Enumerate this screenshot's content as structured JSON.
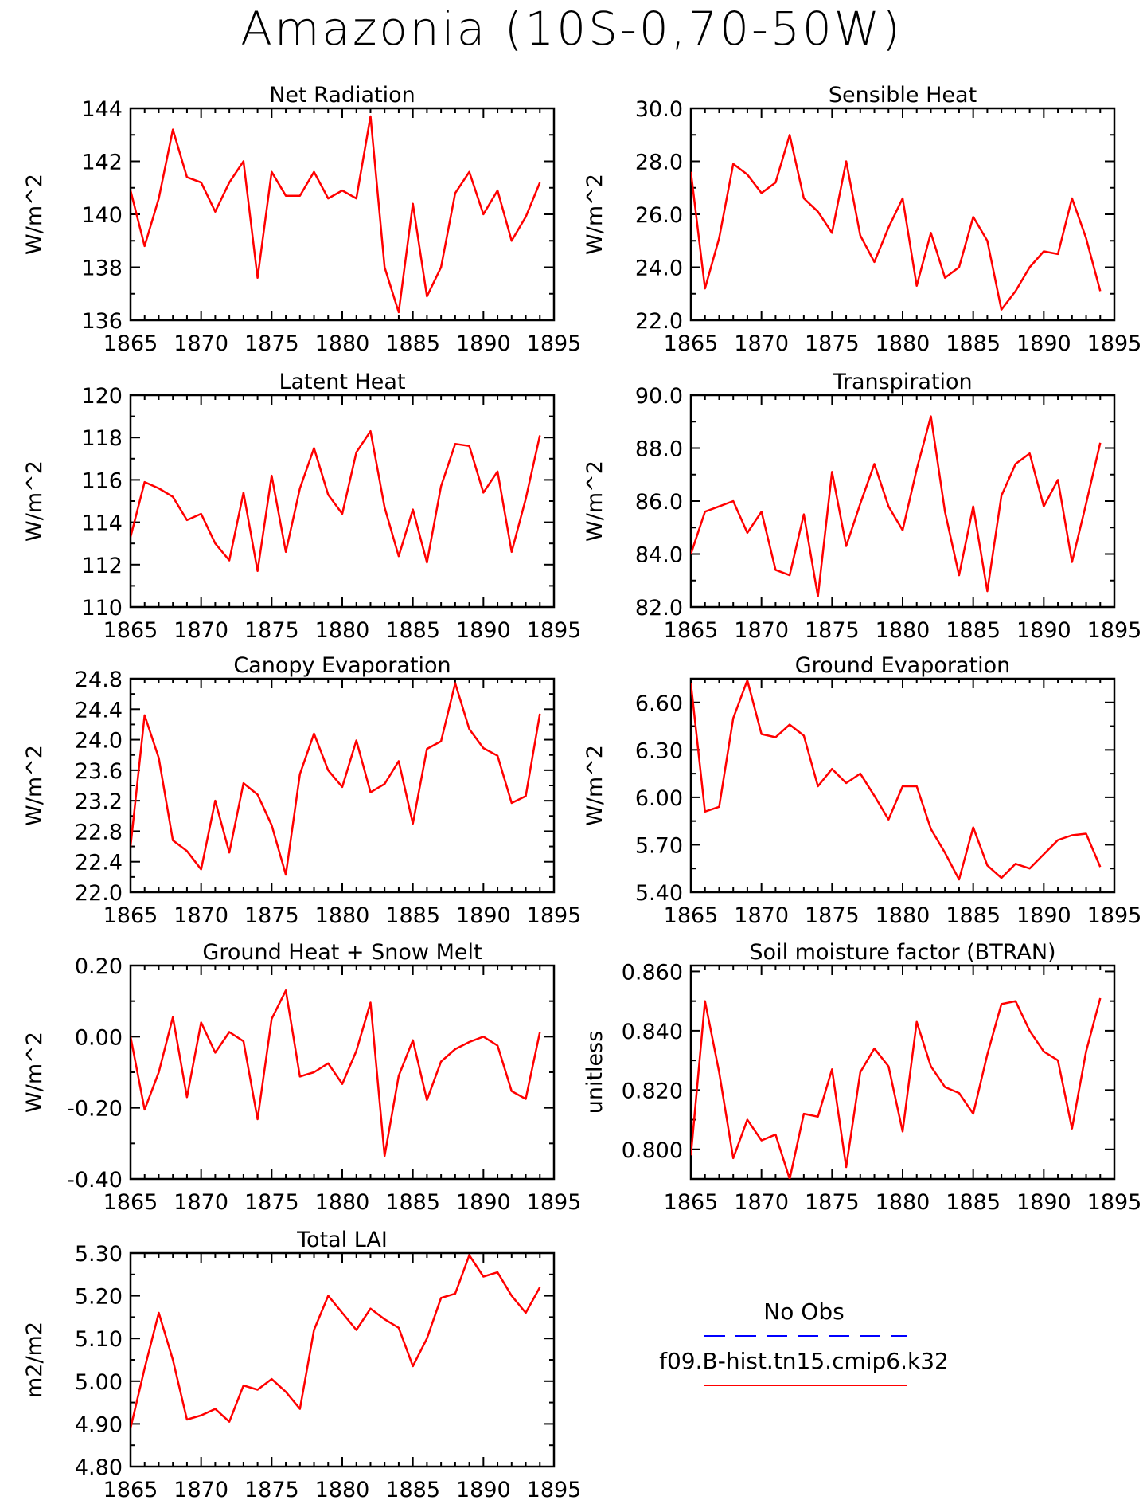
{
  "title": "Amazonia (10S-0,70-50W)",
  "legend": {
    "obs_label": "No Obs",
    "obs_color": "#0000ff",
    "model_label": "f09.B-hist.tn15.cmip6.k32",
    "model_color": "#ff0000"
  },
  "chart_data": [
    {
      "type": "line",
      "title": "Net Radiation",
      "ylabel": "W/m^2",
      "xlim": [
        1865,
        1895
      ],
      "ylim": [
        136,
        144
      ],
      "xticks": [
        "1865",
        "1870",
        "1875",
        "1880",
        "1885",
        "1890",
        "1895"
      ],
      "yticks": [
        "136",
        "138",
        "140",
        "142",
        "144"
      ],
      "series": [
        {
          "name": "f09.B-hist.tn15.cmip6.k32",
          "x": [
            1865,
            1866,
            1867,
            1868,
            1869,
            1870,
            1871,
            1872,
            1873,
            1874,
            1875,
            1876,
            1877,
            1878,
            1879,
            1880,
            1881,
            1882,
            1883,
            1884,
            1885,
            1886,
            1887,
            1888,
            1889,
            1890,
            1891,
            1892,
            1893,
            1894
          ],
          "values": [
            140.9,
            138.8,
            140.6,
            143.2,
            141.4,
            141.2,
            140.1,
            141.2,
            142.0,
            137.6,
            141.6,
            140.7,
            140.7,
            141.6,
            140.6,
            140.9,
            140.6,
            143.7,
            138.0,
            136.3,
            140.4,
            136.9,
            138.0,
            140.8,
            141.6,
            140.0,
            140.9,
            139.0,
            139.9,
            141.2
          ]
        }
      ]
    },
    {
      "type": "line",
      "title": "Sensible Heat",
      "ylabel": "W/m^2",
      "xlim": [
        1865,
        1895
      ],
      "ylim": [
        22,
        30
      ],
      "xticks": [
        "1865",
        "1870",
        "1875",
        "1880",
        "1885",
        "1890",
        "1895"
      ],
      "yticks": [
        "22.0",
        "24.0",
        "26.0",
        "28.0",
        "30.0"
      ],
      "series": [
        {
          "name": "f09.B-hist.tn15.cmip6.k32",
          "x": [
            1865,
            1866,
            1867,
            1868,
            1869,
            1870,
            1871,
            1872,
            1873,
            1874,
            1875,
            1876,
            1877,
            1878,
            1879,
            1880,
            1881,
            1882,
            1883,
            1884,
            1885,
            1886,
            1887,
            1888,
            1889,
            1890,
            1891,
            1892,
            1893,
            1894
          ],
          "values": [
            27.6,
            23.2,
            25.1,
            27.9,
            27.5,
            26.8,
            27.2,
            29.0,
            26.6,
            26.1,
            25.3,
            28.0,
            25.2,
            24.2,
            25.5,
            26.6,
            23.3,
            25.3,
            23.6,
            24.0,
            25.9,
            25.0,
            22.4,
            23.1,
            24.0,
            24.6,
            24.5,
            26.6,
            25.1,
            23.1
          ]
        }
      ]
    },
    {
      "type": "line",
      "title": "Latent Heat",
      "ylabel": "W/m^2",
      "xlim": [
        1865,
        1895
      ],
      "ylim": [
        110,
        120
      ],
      "xticks": [
        "1865",
        "1870",
        "1875",
        "1880",
        "1885",
        "1890",
        "1895"
      ],
      "yticks": [
        "110",
        "112",
        "114",
        "116",
        "118",
        "120"
      ],
      "series": [
        {
          "name": "f09.B-hist.tn15.cmip6.k32",
          "x": [
            1865,
            1866,
            1867,
            1868,
            1869,
            1870,
            1871,
            1872,
            1873,
            1874,
            1875,
            1876,
            1877,
            1878,
            1879,
            1880,
            1881,
            1882,
            1883,
            1884,
            1885,
            1886,
            1887,
            1888,
            1889,
            1890,
            1891,
            1892,
            1893,
            1894
          ],
          "values": [
            113.3,
            115.9,
            115.6,
            115.2,
            114.1,
            114.4,
            113.0,
            112.2,
            115.4,
            111.7,
            116.2,
            112.6,
            115.6,
            117.5,
            115.3,
            114.4,
            117.3,
            118.3,
            114.7,
            112.4,
            114.6,
            112.1,
            115.7,
            117.7,
            117.6,
            115.4,
            116.4,
            112.6,
            115.1,
            118.1
          ]
        }
      ]
    },
    {
      "type": "line",
      "title": "Transpiration",
      "ylabel": "W/m^2",
      "xlim": [
        1865,
        1895
      ],
      "ylim": [
        82,
        90
      ],
      "xticks": [
        "1865",
        "1870",
        "1875",
        "1880",
        "1885",
        "1890",
        "1895"
      ],
      "yticks": [
        "82.0",
        "84.0",
        "86.0",
        "88.0",
        "90.0"
      ],
      "series": [
        {
          "name": "f09.B-hist.tn15.cmip6.k32",
          "x": [
            1865,
            1866,
            1867,
            1868,
            1869,
            1870,
            1871,
            1872,
            1873,
            1874,
            1875,
            1876,
            1877,
            1878,
            1879,
            1880,
            1881,
            1882,
            1883,
            1884,
            1885,
            1886,
            1887,
            1888,
            1889,
            1890,
            1891,
            1892,
            1893,
            1894
          ],
          "values": [
            84.0,
            85.6,
            85.8,
            86.0,
            84.8,
            85.6,
            83.4,
            83.2,
            85.5,
            82.4,
            87.1,
            84.3,
            85.9,
            87.4,
            85.8,
            84.9,
            87.2,
            89.2,
            85.6,
            83.2,
            85.8,
            82.6,
            86.2,
            87.4,
            87.8,
            85.8,
            86.8,
            83.7,
            85.9,
            88.2
          ]
        }
      ]
    },
    {
      "type": "line",
      "title": "Canopy Evaporation",
      "ylabel": "W/m^2",
      "xlim": [
        1865,
        1895
      ],
      "ylim": [
        22.0,
        24.8
      ],
      "xticks": [
        "1865",
        "1870",
        "1875",
        "1880",
        "1885",
        "1890",
        "1895"
      ],
      "yticks": [
        "22.0",
        "22.4",
        "22.8",
        "23.2",
        "23.6",
        "24.0",
        "24.4",
        "24.8"
      ],
      "series": [
        {
          "name": "f09.B-hist.tn15.cmip6.k32",
          "x": [
            1865,
            1866,
            1867,
            1868,
            1869,
            1870,
            1871,
            1872,
            1873,
            1874,
            1875,
            1876,
            1877,
            1878,
            1879,
            1880,
            1881,
            1882,
            1883,
            1884,
            1885,
            1886,
            1887,
            1888,
            1889,
            1890,
            1891,
            1892,
            1893,
            1894
          ],
          "values": [
            22.6,
            24.32,
            23.76,
            22.68,
            22.54,
            22.3,
            23.2,
            22.52,
            23.43,
            23.28,
            22.88,
            22.23,
            23.55,
            24.08,
            23.6,
            23.38,
            23.99,
            23.31,
            23.42,
            23.72,
            22.9,
            23.88,
            23.98,
            24.74,
            24.14,
            23.89,
            23.79,
            23.17,
            23.26,
            24.34
          ]
        }
      ]
    },
    {
      "type": "line",
      "title": "Ground Evaporation",
      "ylabel": "W/m^2",
      "xlim": [
        1865,
        1895
      ],
      "ylim": [
        5.4,
        6.75
      ],
      "xticks": [
        "1865",
        "1870",
        "1875",
        "1880",
        "1885",
        "1890",
        "1895"
      ],
      "yticks": [
        "5.40",
        "5.70",
        "6.00",
        "6.30",
        "6.60"
      ],
      "series": [
        {
          "name": "f09.B-hist.tn15.cmip6.k32",
          "x": [
            1865,
            1866,
            1867,
            1868,
            1869,
            1870,
            1871,
            1872,
            1873,
            1874,
            1875,
            1876,
            1877,
            1878,
            1879,
            1880,
            1881,
            1882,
            1883,
            1884,
            1885,
            1886,
            1887,
            1888,
            1889,
            1890,
            1891,
            1892,
            1893,
            1894
          ],
          "values": [
            6.72,
            5.91,
            5.94,
            6.5,
            6.74,
            6.4,
            6.38,
            6.46,
            6.39,
            6.07,
            6.18,
            6.09,
            6.15,
            6.01,
            5.86,
            6.07,
            6.07,
            5.8,
            5.65,
            5.48,
            5.81,
            5.57,
            5.49,
            5.58,
            5.55,
            5.64,
            5.73,
            5.76,
            5.77,
            5.56
          ]
        }
      ]
    },
    {
      "type": "line",
      "title": "Ground Heat + Snow Melt",
      "ylabel": "W/m^2",
      "xlim": [
        1865,
        1895
      ],
      "ylim": [
        -0.4,
        0.2
      ],
      "xticks": [
        "1865",
        "1870",
        "1875",
        "1880",
        "1885",
        "1890",
        "1895"
      ],
      "yticks": [
        "-0.40",
        "-0.20",
        "0.00",
        "0.20"
      ],
      "series": [
        {
          "name": "f09.B-hist.tn15.cmip6.k32",
          "x": [
            1865,
            1866,
            1867,
            1868,
            1869,
            1870,
            1871,
            1872,
            1873,
            1874,
            1875,
            1876,
            1877,
            1878,
            1879,
            1880,
            1881,
            1882,
            1883,
            1884,
            1885,
            1886,
            1887,
            1888,
            1889,
            1890,
            1891,
            1892,
            1893,
            1894
          ],
          "values": [
            0.0,
            -0.205,
            -0.1,
            0.055,
            -0.17,
            0.04,
            -0.045,
            0.013,
            -0.013,
            -0.232,
            0.05,
            0.13,
            -0.112,
            -0.1,
            -0.075,
            -0.133,
            -0.04,
            0.096,
            -0.335,
            -0.11,
            -0.01,
            -0.178,
            -0.07,
            -0.035,
            -0.015,
            0.0,
            -0.025,
            -0.153,
            -0.175,
            0.013
          ]
        }
      ]
    },
    {
      "type": "line",
      "title": "Soil moisture factor (BTRAN)",
      "ylabel": "unitless",
      "xlim": [
        1865,
        1895
      ],
      "ylim": [
        0.79,
        0.862
      ],
      "xticks": [
        "1865",
        "1870",
        "1875",
        "1880",
        "1885",
        "1890",
        "1895"
      ],
      "yticks": [
        "0.800",
        "0.820",
        "0.840",
        "0.860"
      ],
      "series": [
        {
          "name": "f09.B-hist.tn15.cmip6.k32",
          "x": [
            1865,
            1866,
            1867,
            1868,
            1869,
            1870,
            1871,
            1872,
            1873,
            1874,
            1875,
            1876,
            1877,
            1878,
            1879,
            1880,
            1881,
            1882,
            1883,
            1884,
            1885,
            1886,
            1887,
            1888,
            1889,
            1890,
            1891,
            1892,
            1893,
            1894
          ],
          "values": [
            0.798,
            0.85,
            0.826,
            0.797,
            0.81,
            0.803,
            0.805,
            0.79,
            0.812,
            0.811,
            0.827,
            0.794,
            0.826,
            0.834,
            0.828,
            0.806,
            0.843,
            0.828,
            0.821,
            0.819,
            0.812,
            0.832,
            0.849,
            0.85,
            0.84,
            0.833,
            0.83,
            0.807,
            0.833,
            0.851
          ]
        }
      ]
    },
    {
      "type": "line",
      "title": "Total LAI",
      "ylabel": "m2/m2",
      "xlim": [
        1865,
        1895
      ],
      "ylim": [
        4.8,
        5.3
      ],
      "xticks": [
        "1865",
        "1870",
        "1875",
        "1880",
        "1885",
        "1890",
        "1895"
      ],
      "yticks": [
        "4.80",
        "4.90",
        "5.00",
        "5.10",
        "5.20",
        "5.30"
      ],
      "series": [
        {
          "name": "f09.B-hist.tn15.cmip6.k32",
          "x": [
            1865,
            1866,
            1867,
            1868,
            1869,
            1870,
            1871,
            1872,
            1873,
            1874,
            1875,
            1876,
            1877,
            1878,
            1879,
            1880,
            1881,
            1882,
            1883,
            1884,
            1885,
            1886,
            1887,
            1888,
            1889,
            1890,
            1891,
            1892,
            1893,
            1894
          ],
          "values": [
            4.89,
            5.03,
            5.16,
            5.05,
            4.91,
            4.92,
            4.935,
            4.905,
            4.99,
            4.98,
            5.005,
            4.975,
            4.935,
            5.12,
            5.2,
            5.16,
            5.12,
            5.17,
            5.145,
            5.125,
            5.035,
            5.1,
            5.195,
            5.205,
            5.295,
            5.245,
            5.255,
            5.2,
            5.16,
            5.22
          ]
        }
      ]
    }
  ]
}
